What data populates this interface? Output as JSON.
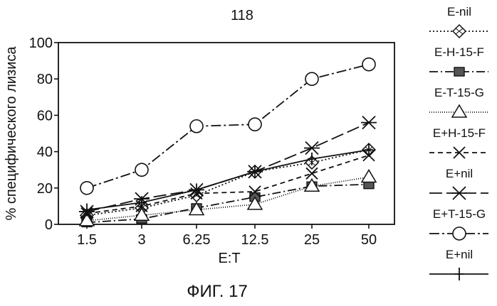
{
  "page_number": "118",
  "figure_caption": "ФИГ. 17",
  "chart_data": {
    "type": "line",
    "title": "",
    "xlabel": "E:T",
    "ylabel": "% специфического лизиса",
    "categories": [
      "1.5",
      "3",
      "6.25",
      "12.5",
      "25",
      "50"
    ],
    "ylim": [
      0,
      100
    ],
    "yticks": [
      0,
      20,
      40,
      60,
      80,
      100
    ],
    "grid": false,
    "legend_position": "right",
    "series": [
      {
        "name": "E-nil",
        "values": [
          5,
          9,
          16,
          29,
          34,
          41
        ],
        "marker": "diamond",
        "dash": "2,3",
        "color": "#111111"
      },
      {
        "name": "E-H-15-F",
        "values": [
          1,
          3,
          9,
          15,
          21,
          22
        ],
        "marker": "square",
        "dash": "12,4,2,4",
        "color": "#111111"
      },
      {
        "name": "E-T-15-G",
        "values": [
          2,
          5,
          8,
          11,
          21,
          26
        ],
        "marker": "triangle",
        "dash": "1,2",
        "color": "#111111"
      },
      {
        "name": "E+H-15-F",
        "values": [
          6,
          10,
          17,
          18,
          28,
          38
        ],
        "marker": "x",
        "dash": "7,5",
        "color": "#111111"
      },
      {
        "name": "E+nil",
        "values": [
          7,
          14,
          19,
          29,
          42,
          56
        ],
        "marker": "asterisk",
        "dash": "18,6",
        "color": "#111111"
      },
      {
        "name": "E+T-15-G",
        "values": [
          20,
          30,
          54,
          55,
          80,
          88
        ],
        "marker": "circle",
        "dash": "14,4,3,4",
        "color": "#111111"
      },
      {
        "name": "E+nil",
        "values": [
          8,
          12,
          19,
          29,
          36,
          41
        ],
        "marker": "plus",
        "dash": "",
        "color": "#111111"
      }
    ]
  }
}
